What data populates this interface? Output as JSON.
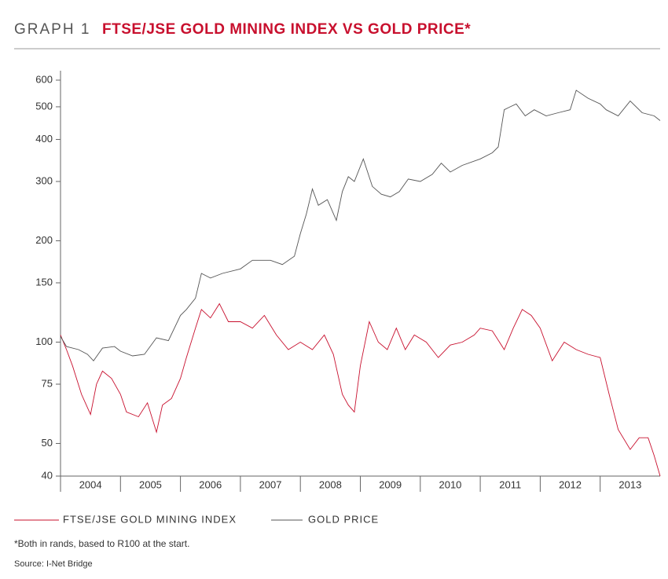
{
  "header": "GRAPH 1",
  "chart_data": {
    "type": "line",
    "title": "FTSE/JSE GOLD MINING INDEX VS GOLD PRICE*",
    "log_scale": true,
    "xlim": [
      2004,
      2014
    ],
    "categories": [
      "2004",
      "2005",
      "2006",
      "2007",
      "2008",
      "2009",
      "2010",
      "2011",
      "2012",
      "2013"
    ],
    "ylim": [
      40,
      640
    ],
    "yticks": [
      40,
      50,
      75,
      100,
      150,
      200,
      300,
      400,
      500,
      600
    ],
    "series": [
      {
        "name": "FTSE/JSE GOLD MINING INDEX",
        "color": "#c8102e",
        "x": [
          2004.0,
          2004.1,
          2004.2,
          2004.35,
          2004.5,
          2004.6,
          2004.7,
          2004.85,
          2005.0,
          2005.1,
          2005.3,
          2005.45,
          2005.6,
          2005.7,
          2005.85,
          2006.0,
          2006.1,
          2006.25,
          2006.35,
          2006.5,
          2006.65,
          2006.8,
          2007.0,
          2007.2,
          2007.4,
          2007.6,
          2007.8,
          2008.0,
          2008.2,
          2008.4,
          2008.55,
          2008.7,
          2008.8,
          2008.9,
          2009.0,
          2009.15,
          2009.3,
          2009.45,
          2009.6,
          2009.75,
          2009.9,
          2010.1,
          2010.3,
          2010.5,
          2010.7,
          2010.9,
          2011.0,
          2011.2,
          2011.4,
          2011.55,
          2011.7,
          2011.85,
          2012.0,
          2012.2,
          2012.4,
          2012.6,
          2012.8,
          2013.0,
          2013.15,
          2013.3,
          2013.5,
          2013.65,
          2013.8,
          2013.9,
          2014.0
        ],
        "values": [
          105,
          95,
          85,
          70,
          61,
          75,
          82,
          78,
          70,
          62,
          60,
          66,
          54,
          65,
          68,
          78,
          90,
          110,
          125,
          118,
          130,
          115,
          115,
          110,
          120,
          105,
          95,
          100,
          95,
          105,
          92,
          70,
          65,
          62,
          85,
          115,
          100,
          95,
          110,
          95,
          105,
          100,
          90,
          98,
          100,
          105,
          110,
          108,
          95,
          110,
          125,
          120,
          110,
          88,
          100,
          95,
          92,
          90,
          70,
          55,
          48,
          52,
          52,
          46,
          40
        ]
      },
      {
        "name": "GOLD PRICE",
        "color": "#555555",
        "x": [
          2004.0,
          2004.1,
          2004.3,
          2004.45,
          2004.55,
          2004.7,
          2004.9,
          2005.0,
          2005.2,
          2005.4,
          2005.6,
          2005.8,
          2006.0,
          2006.1,
          2006.25,
          2006.35,
          2006.5,
          2006.7,
          2007.0,
          2007.2,
          2007.5,
          2007.7,
          2007.9,
          2008.0,
          2008.1,
          2008.2,
          2008.3,
          2008.45,
          2008.6,
          2008.7,
          2008.8,
          2008.9,
          2009.05,
          2009.2,
          2009.35,
          2009.5,
          2009.65,
          2009.8,
          2010.0,
          2010.2,
          2010.35,
          2010.5,
          2010.7,
          2011.0,
          2011.2,
          2011.3,
          2011.4,
          2011.5,
          2011.6,
          2011.75,
          2011.9,
          2012.1,
          2012.3,
          2012.5,
          2012.6,
          2012.8,
          2013.0,
          2013.1,
          2013.3,
          2013.5,
          2013.7,
          2013.9,
          2014.0
        ],
        "values": [
          104,
          97,
          95,
          92,
          88,
          96,
          97,
          94,
          91,
          92,
          103,
          101,
          120,
          125,
          135,
          160,
          155,
          160,
          165,
          175,
          175,
          170,
          180,
          210,
          240,
          285,
          255,
          265,
          230,
          280,
          310,
          300,
          350,
          290,
          275,
          270,
          280,
          305,
          300,
          315,
          340,
          320,
          335,
          350,
          365,
          380,
          490,
          500,
          510,
          470,
          490,
          470,
          480,
          490,
          560,
          530,
          510,
          490,
          470,
          520,
          480,
          470,
          455
        ]
      }
    ]
  },
  "footnote": "*Both in rands, based to R100 at the start.",
  "source": "Source: I-Net Bridge"
}
